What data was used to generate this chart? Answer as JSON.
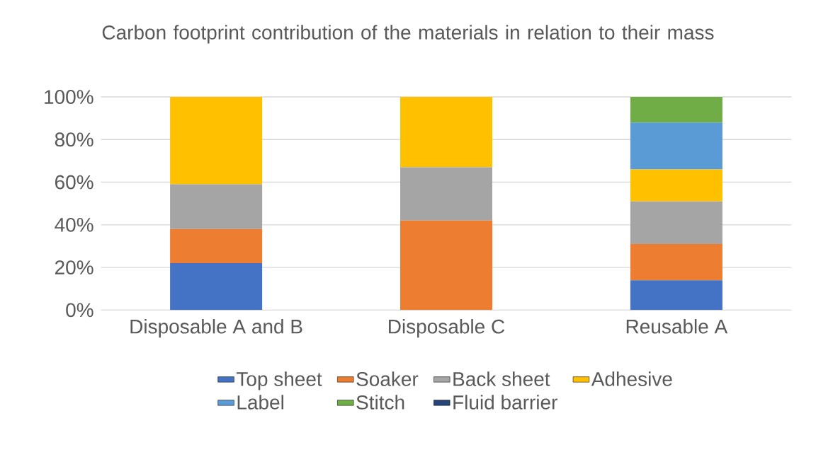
{
  "chart_data": {
    "type": "bar",
    "stacked": true,
    "title": "Carbon footprint contribution of the materials in relation to their mass",
    "categories": [
      "Disposable A and B",
      "Disposable C",
      "Reusable A"
    ],
    "series": [
      {
        "name": "Top sheet",
        "color": "#4472c4",
        "values": [
          22,
          0,
          14
        ]
      },
      {
        "name": "Soaker",
        "color": "#ed7d31",
        "values": [
          16,
          42,
          17
        ]
      },
      {
        "name": "Back sheet",
        "color": "#a5a5a5",
        "values": [
          21,
          25,
          20
        ]
      },
      {
        "name": "Adhesive",
        "color": "#ffc000",
        "values": [
          41,
          33,
          15
        ]
      },
      {
        "name": "Label",
        "color": "#5b9bd5",
        "values": [
          0,
          0,
          22
        ]
      },
      {
        "name": "Stitch",
        "color": "#70ad47",
        "values": [
          0,
          0,
          12
        ]
      },
      {
        "name": "Fluid barrier",
        "color": "#264478",
        "values": [
          0,
          0,
          0
        ]
      }
    ],
    "ylim": [
      0,
      100
    ],
    "yticks": [
      {
        "value": 0,
        "label": "0%"
      },
      {
        "value": 20,
        "label": "20%"
      },
      {
        "value": 40,
        "label": "40%"
      },
      {
        "value": 60,
        "label": "60%"
      },
      {
        "value": 80,
        "label": "80%"
      },
      {
        "value": 100,
        "label": "100%"
      }
    ],
    "grid": "y",
    "legend": "bottom"
  }
}
